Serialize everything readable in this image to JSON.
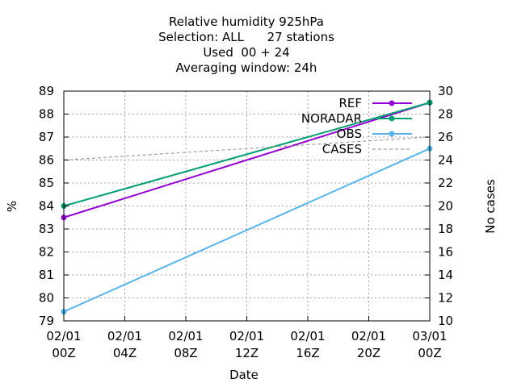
{
  "chart_data": {
    "type": "line",
    "title_lines": [
      "Relative humidity 925hPa",
      "Selection: ALL      27 stations",
      "Used  00 + 24",
      "Averaging window: 24h"
    ],
    "xlabel": "Date",
    "ylabel": "%",
    "y2label": "No cases",
    "x_ticks": [
      {
        "top": "02/01",
        "bottom": "00Z"
      },
      {
        "top": "02/01",
        "bottom": "04Z"
      },
      {
        "top": "02/01",
        "bottom": "08Z"
      },
      {
        "top": "02/01",
        "bottom": "12Z"
      },
      {
        "top": "02/01",
        "bottom": "16Z"
      },
      {
        "top": "02/01",
        "bottom": "20Z"
      },
      {
        "top": "03/01",
        "bottom": "00Z"
      }
    ],
    "xlim_hours": [
      0,
      24
    ],
    "ylim": [
      79,
      89
    ],
    "y_ticks": [
      79,
      80,
      81,
      82,
      83,
      84,
      85,
      86,
      87,
      88,
      89
    ],
    "y2lim": [
      10,
      30
    ],
    "y2_ticks": [
      10,
      12,
      14,
      16,
      18,
      20,
      22,
      24,
      26,
      28,
      30
    ],
    "grid": true,
    "legend_position": "top-right",
    "series": [
      {
        "name": "REF",
        "axis": "y",
        "color": "#9400d3",
        "style": "line-points",
        "x": [
          0,
          24
        ],
        "y": [
          83.5,
          88.5
        ]
      },
      {
        "name": "NORADAR",
        "axis": "y",
        "color": "#009e73",
        "style": "line-points",
        "x": [
          0,
          24
        ],
        "y": [
          84.0,
          88.5
        ]
      },
      {
        "name": "OBS",
        "axis": "y",
        "color": "#56b4e9",
        "style": "line-points",
        "x": [
          0,
          24
        ],
        "y": [
          79.4,
          86.5
        ]
      },
      {
        "name": "CASES",
        "axis": "y2",
        "color": "#a0a0a0",
        "style": "dashed",
        "x": [
          0,
          24
        ],
        "y": [
          24,
          26
        ]
      }
    ]
  }
}
